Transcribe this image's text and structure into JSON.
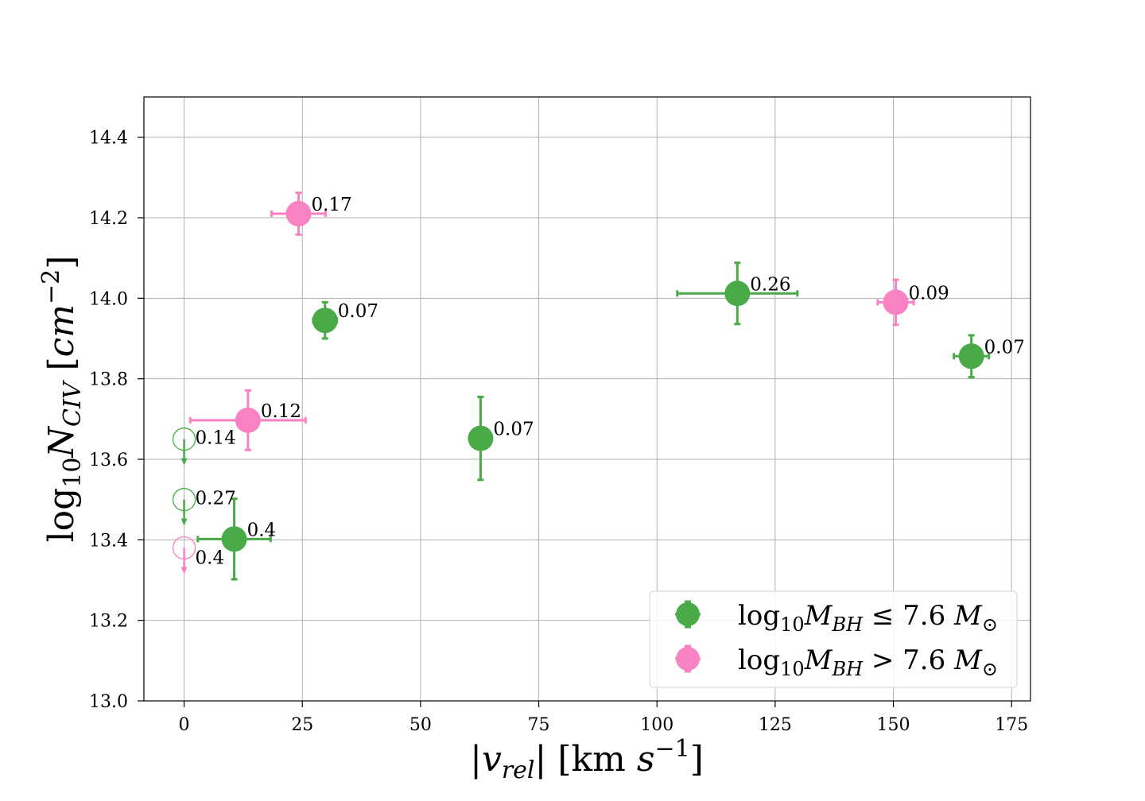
{
  "chart_data": {
    "type": "scatter",
    "xlabel": "|v_rel| [km s^-1]",
    "ylabel": "log10 N_CIV [cm^-2]",
    "xlim": [
      -8.5,
      179
    ],
    "ylim": [
      13.0,
      14.5
    ],
    "xticks": [
      0,
      25,
      50,
      75,
      100,
      125,
      150,
      175
    ],
    "yticks": [
      13.0,
      13.2,
      13.4,
      13.6,
      13.8,
      14.0,
      14.2,
      14.4
    ],
    "xtick_labels": [
      "0",
      "25",
      "50",
      "75",
      "100",
      "125",
      "150",
      "175"
    ],
    "ytick_labels": [
      "13.0",
      "13.2",
      "13.4",
      "13.6",
      "13.8",
      "14.0",
      "14.2",
      "14.4"
    ],
    "grid": true,
    "legend_position": "bottom-right",
    "colors": {
      "low": "#4aaa48",
      "high": "#f882c2"
    },
    "series": [
      {
        "name": "log10 M_BH ≤ 7.6 M_⊙",
        "color_key": "low",
        "points": [
          {
            "x": 29.8,
            "y": 13.945,
            "xerr": 2.5,
            "yerr": 0.045,
            "label": "0.07",
            "upper_limit": false
          },
          {
            "x": 62.7,
            "y": 13.652,
            "xerr": 0,
            "yerr": 0.103,
            "label": "0.07",
            "upper_limit": false
          },
          {
            "x": 117.0,
            "y": 14.012,
            "xerr": 12.7,
            "yerr": 0.076,
            "label": "0.26",
            "upper_limit": false
          },
          {
            "x": 166.5,
            "y": 13.856,
            "xerr": 3.7,
            "yerr": 0.052,
            "label": "0.07",
            "upper_limit": false
          },
          {
            "x": 10.6,
            "y": 13.402,
            "xerr": 7.7,
            "yerr": 0.1,
            "label": "0.4",
            "upper_limit": false
          },
          {
            "x": 0,
            "y": 13.65,
            "xerr": 0,
            "yerr": 0.0,
            "label": "0.14",
            "upper_limit": true
          },
          {
            "x": 0,
            "y": 13.5,
            "xerr": 0,
            "yerr": 0.0,
            "label": "0.27",
            "upper_limit": true
          }
        ]
      },
      {
        "name": "log10 M_BH > 7.6 M_⊙",
        "color_key": "high",
        "points": [
          {
            "x": 24.2,
            "y": 14.21,
            "xerr": 5.7,
            "yerr": 0.052,
            "label": "0.17",
            "upper_limit": false
          },
          {
            "x": 13.5,
            "y": 13.697,
            "xerr": 12.2,
            "yerr": 0.074,
            "label": "0.12",
            "upper_limit": false
          },
          {
            "x": 150.5,
            "y": 13.99,
            "xerr": 3.8,
            "yerr": 0.056,
            "label": "0.09",
            "upper_limit": false
          },
          {
            "x": 0,
            "y": 13.38,
            "xerr": 0,
            "yerr": 0.0,
            "label": "0.4",
            "upper_limit": true
          }
        ]
      }
    ]
  }
}
